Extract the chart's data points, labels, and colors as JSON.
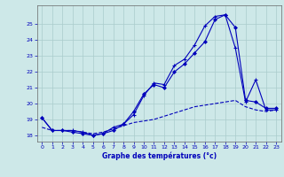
{
  "xlabel": "Graphe des températures (°c)",
  "ylim": [
    17.6,
    26.2
  ],
  "xlim": [
    -0.5,
    23.5
  ],
  "yticks": [
    18,
    19,
    20,
    21,
    22,
    23,
    24,
    25
  ],
  "xticks": [
    0,
    1,
    2,
    3,
    4,
    5,
    6,
    7,
    8,
    9,
    10,
    11,
    12,
    13,
    14,
    15,
    16,
    17,
    18,
    19,
    20,
    21,
    22,
    23
  ],
  "background_color": "#cde8e8",
  "grid_color": "#aacccc",
  "line_color": "#0000bb",
  "line1_x": [
    0,
    1,
    2,
    3,
    4,
    5,
    6,
    7,
    8,
    9,
    10,
    11,
    12,
    13,
    14,
    15,
    16,
    17,
    18,
    19,
    20,
    21,
    22,
    23
  ],
  "line1_y": [
    19.1,
    18.3,
    18.3,
    18.3,
    18.2,
    18.0,
    18.1,
    18.5,
    18.7,
    19.3,
    20.5,
    21.3,
    21.2,
    22.4,
    22.8,
    23.7,
    24.9,
    25.5,
    25.6,
    23.5,
    20.1,
    21.5,
    19.6,
    19.6
  ],
  "line2_x": [
    0,
    1,
    2,
    3,
    4,
    5,
    6,
    7,
    8,
    9,
    10,
    11,
    12,
    13,
    14,
    15,
    16,
    17,
    18,
    19,
    20,
    21,
    22,
    23
  ],
  "line2_y": [
    19.1,
    18.3,
    18.3,
    18.2,
    18.1,
    18.0,
    18.1,
    18.3,
    18.7,
    19.5,
    20.6,
    21.2,
    21.0,
    22.0,
    22.5,
    23.2,
    23.9,
    25.3,
    25.6,
    24.8,
    20.2,
    20.1,
    19.7,
    19.7
  ],
  "line3_x": [
    0,
    1,
    2,
    3,
    4,
    5,
    6,
    7,
    8,
    9,
    10,
    11,
    12,
    13,
    14,
    15,
    16,
    17,
    18,
    19,
    20,
    21,
    22,
    23
  ],
  "line3_y": [
    18.5,
    18.3,
    18.3,
    18.3,
    18.2,
    18.1,
    18.2,
    18.4,
    18.6,
    18.8,
    18.9,
    19.0,
    19.2,
    19.4,
    19.6,
    19.8,
    19.9,
    20.0,
    20.1,
    20.2,
    19.8,
    19.6,
    19.5,
    19.6
  ]
}
